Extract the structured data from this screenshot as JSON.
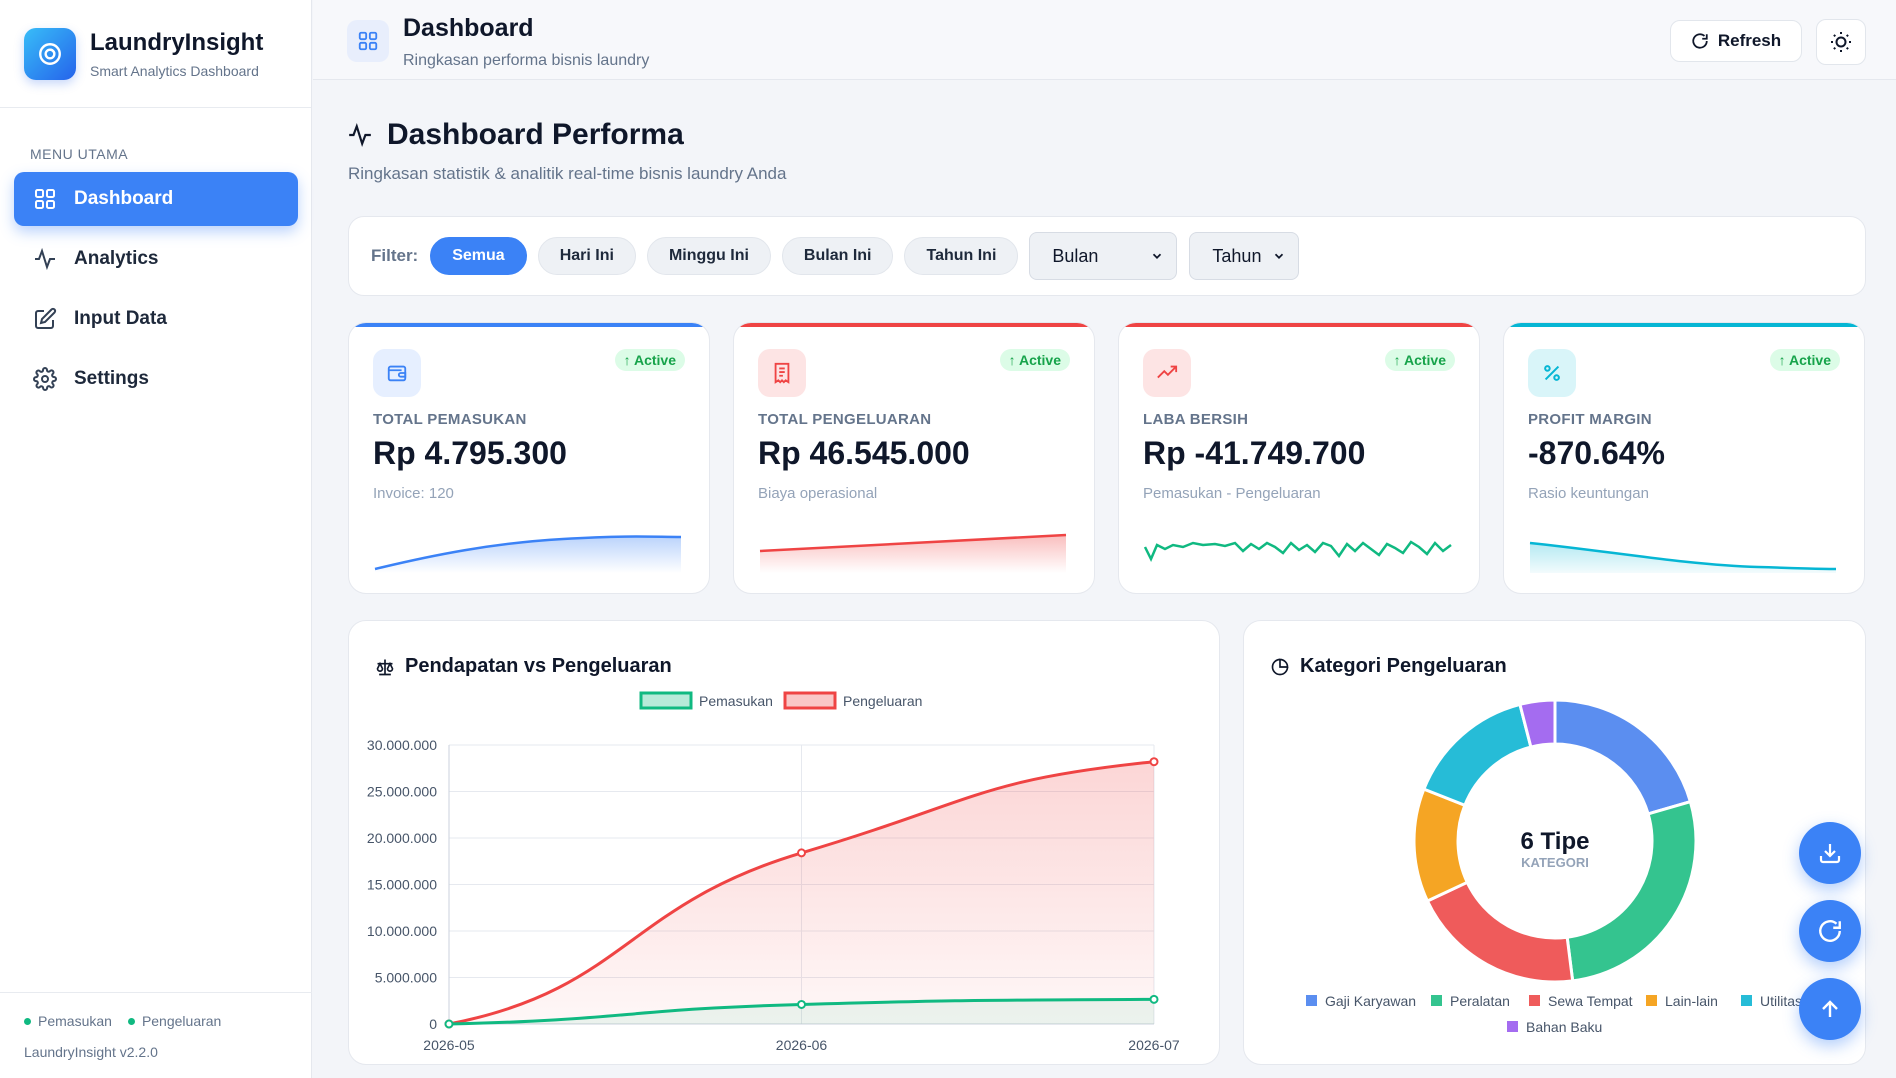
{
  "brand": {
    "name": "LaundryInsight",
    "subtitle": "Smart Analytics Dashboard"
  },
  "sidebar": {
    "section_title": "MENU UTAMA",
    "items": [
      {
        "label": "Dashboard",
        "icon": "grid-icon",
        "active": true
      },
      {
        "label": "Analytics",
        "icon": "activity-icon",
        "active": false
      },
      {
        "label": "Input Data",
        "icon": "edit-icon",
        "active": false
      },
      {
        "label": "Settings",
        "icon": "gear-icon",
        "active": false
      }
    ],
    "legend": [
      "Pemasukan",
      "Pengeluaran"
    ],
    "version": "LaundryInsight v2.2.0"
  },
  "header": {
    "title": "Dashboard",
    "subtitle": "Ringkasan performa bisnis laundry",
    "refresh_label": "Refresh"
  },
  "page": {
    "title": "Dashboard Performa",
    "subtitle": "Ringkasan statistik & analitik real-time bisnis laundry Anda"
  },
  "filter": {
    "label": "Filter:",
    "chips": [
      "Semua",
      "Hari Ini",
      "Minggu Ini",
      "Bulan Ini",
      "Tahun Ini"
    ],
    "active_chip": "Semua",
    "month_select": "Bulan",
    "year_select": "Tahun"
  },
  "kpis": [
    {
      "label": "TOTAL PEMASUKAN",
      "value": "Rp 4.795.300",
      "desc": "Invoice: 120",
      "badge": "↑ Active",
      "color": "#3b82f6",
      "icon": "wallet-icon"
    },
    {
      "label": "TOTAL PENGELUARAN",
      "value": "Rp 46.545.000",
      "desc": "Biaya operasional",
      "badge": "↑ Active",
      "color": "#ef4444",
      "icon": "receipt-icon"
    },
    {
      "label": "LABA BERSIH",
      "value": "Rp -41.749.700",
      "desc": "Pemasukan - Pengeluaran",
      "badge": "↑ Active",
      "color": "#ef4444",
      "icon": "trending-up-icon"
    },
    {
      "label": "PROFIT MARGIN",
      "value": "-870.64%",
      "desc": "Rasio keuntungan",
      "badge": "↑ Active",
      "color": "#06b6d4",
      "icon": "percent-icon"
    }
  ],
  "income_chart": {
    "title": "Pendapatan vs Pengeluaran"
  },
  "category_chart": {
    "title": "Kategori Pengeluaran",
    "center_value": "6 Tipe",
    "center_label": "KATEGORI"
  },
  "chart_data": [
    {
      "type": "line",
      "title": "Pendapatan vs Pengeluaran",
      "x": [
        "2026-05",
        "2026-06",
        "2026-07"
      ],
      "series": [
        {
          "name": "Pemasukan",
          "values": [
            0,
            2100000,
            2650000
          ],
          "color": "#10b981"
        },
        {
          "name": "Pengeluaran",
          "values": [
            0,
            18400000,
            28200000
          ],
          "color": "#ef4444"
        }
      ],
      "ylim": [
        0,
        30000000
      ],
      "yticks": [
        "0",
        "5.000.000",
        "10.000.000",
        "15.000.000",
        "20.000.000",
        "25.000.000",
        "30.000.000"
      ],
      "legend": "top-center",
      "grid": true
    },
    {
      "type": "pie",
      "title": "Kategori Pengeluaran",
      "categories": [
        "Gaji Karyawan",
        "Peralatan",
        "Sewa Tempat",
        "Lain-lain",
        "Utilitas",
        "Bahan Baku"
      ],
      "values": [
        20.5,
        27.5,
        20,
        13,
        15,
        4
      ],
      "colors": [
        "#5b8ef0",
        "#34c48f",
        "#ef5b5b",
        "#f5a524",
        "#26bcd7",
        "#a46cf0"
      ],
      "legend": "bottom"
    }
  ]
}
